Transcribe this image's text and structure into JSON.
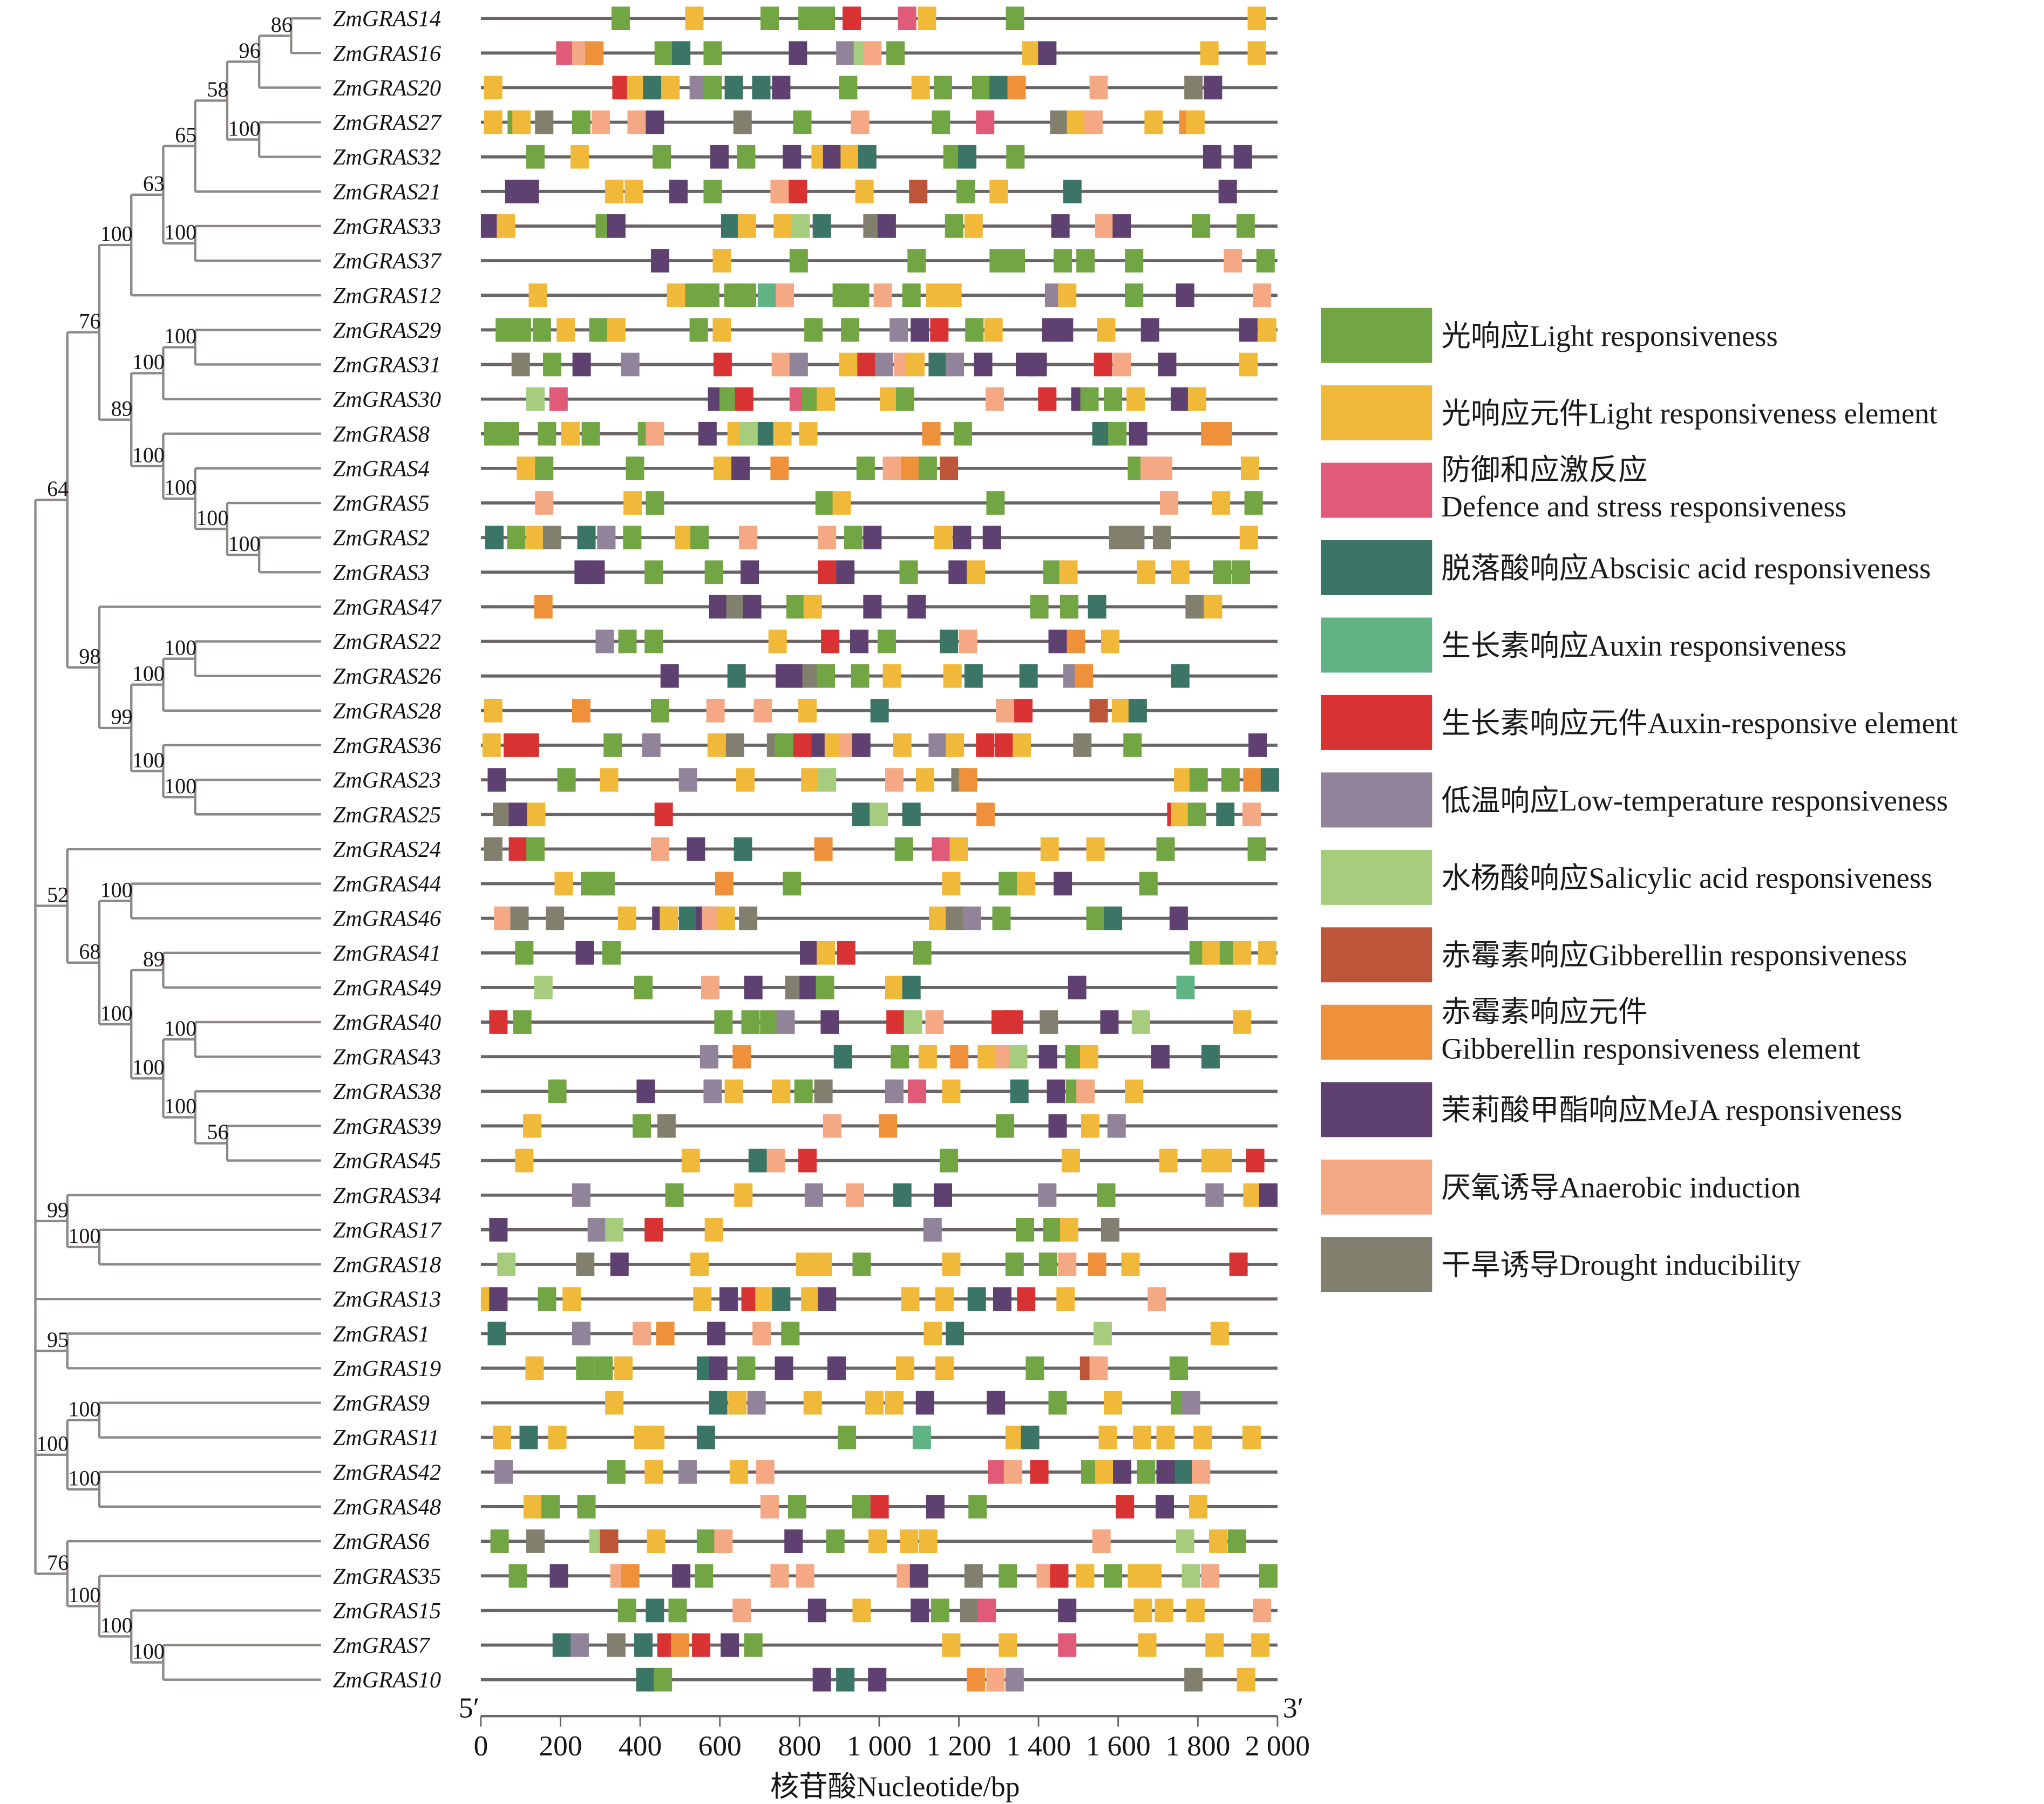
{
  "colors": {
    "L": "#72a543",
    "E": "#f0b93a",
    "D": "#e05b78",
    "A": "#3a7566",
    "X": "#5fb384",
    "R": "#d93233",
    "T": "#918399",
    "S": "#a6cd7d",
    "G": "#bd5538",
    "O": "#ef913a",
    "M": "#5e4170",
    "N": "#f4a883",
    "U": "#817f6e"
  },
  "legend": [
    {
      "code": "L",
      "zh": "光响应",
      "en": "Light responsiveness",
      "two_line": false
    },
    {
      "code": "E",
      "zh": "光响应元件",
      "en": "Light responsiveness element",
      "two_line": false
    },
    {
      "code": "D",
      "zh": "防御和应激反应",
      "en": "Defence and stress responsiveness",
      "two_line": true
    },
    {
      "code": "A",
      "zh": "脱落酸响应",
      "en": "Abscisic acid responsiveness",
      "two_line": false
    },
    {
      "code": "X",
      "zh": "生长素响应",
      "en": "Auxin responsiveness",
      "two_line": false
    },
    {
      "code": "R",
      "zh": "生长素响应元件",
      "en": "Auxin-responsive element",
      "two_line": false
    },
    {
      "code": "T",
      "zh": "低温响应",
      "en": "Low-temperature responsiveness",
      "two_line": false
    },
    {
      "code": "S",
      "zh": "水杨酸响应",
      "en": "Salicylic acid responsiveness",
      "two_line": false
    },
    {
      "code": "G",
      "zh": "赤霉素响应",
      "en": "Gibberellin responsiveness",
      "two_line": false
    },
    {
      "code": "O",
      "zh": "赤霉素响应元件",
      "en": "Gibberellin responsiveness element",
      "two_line": true
    },
    {
      "code": "M",
      "zh": "茉莉酸甲酯响应",
      "en": "MeJA responsiveness",
      "two_line": false
    },
    {
      "code": "N",
      "zh": "厌氧诱导",
      "en": "Anaerobic induction",
      "two_line": false
    },
    {
      "code": "U",
      "zh": "干旱诱导",
      "en": "Drought inducibility",
      "two_line": false
    }
  ],
  "axis": {
    "min": 0,
    "max": 2000,
    "ticks": [
      0,
      200,
      400,
      600,
      800,
      1000,
      1200,
      1400,
      1600,
      1800,
      2000
    ],
    "tick_labels": [
      "0",
      "200",
      "400",
      "600",
      "800",
      "1 000",
      "1 200",
      "1 400",
      "1 600",
      "1 800",
      "2 000"
    ],
    "five_prime": "5′",
    "three_prime": "3′",
    "title": "核苷酸Nucleotide/bp"
  },
  "genes": [
    {
      "name": "ZmGRAS14",
      "elements": "328L 513E 702L 797L 843L 908R 1047D 1097E 1318L 1925E"
    },
    {
      "name": "ZmGRAS16",
      "elements": "189D 229N 262O 436L 480A 559L 773M 892T 936S 960N 1018L 1359E 1399M 1806E 1925E"
    },
    {
      "name": "ZmGRAS20",
      "elements": "8E 330R 367E 407A 453E 524T 559L 612A 681A 731M 899L 1081E 1137L 1233L 1277A 1322O 1528N 1766U 1815M"
    },
    {
      "name": "ZmGRAS27",
      "elements": "8E 67L 79E 136U 229L 278N 368N 414M 634U 784L 929N 1132L 1243D 1429U 1471E 1515N 1666E 1753O 1771E"
    },
    {
      "name": "ZmGRAS32",
      "elements": "114L 225E 431L 576M 643L 758M 830E 859M 903E 947A 1161L 1198A 1319L 1813M 1890M"
    },
    {
      "name": "ZmGRAS21",
      "elements": "61M 100M 312E 361E 473M 559L 727N 773R 940E 1075G 1194L 1277E 1462A 1852M"
    },
    {
      "name": "ZmGRAS33",
      "elements": "0M 40E 288L 317M 603A 645E 735E 780S 833A 960U 996M 1165L 1214E 1432M 1542N 1586M 1785L 1897L"
    },
    {
      "name": "ZmGRAS37",
      "elements": "427M 582E 775L 1071L 1277L 1320L 1438L 1495L 1617L 1865N 1947L"
    },
    {
      "name": "ZmGRAS12",
      "elements": "120E 467E 513L 553L 611L 645L 695X 740N 883L 929L 986N 1058L 1118E 1161E 1416T 1449E 1617L 1745M 1938N"
    },
    {
      "name": "ZmGRAS29",
      "elements": "37L 80L 130L 190E 272L 317E 524L 582E 812L 904L 1026T 1079M 1128R 1216L 1264E 1409M 1441M 1547E 1657M 1904M 1951E"
    },
    {
      "name": "ZmGRAS31",
      "elements": "77U 156L 230M 352T 584R 730N 775T 899E 945R 989T 1037N 1068E 1124A 1167T 1238M 1343M 1375M 1539R 1586N 1700M 1904E"
    },
    {
      "name": "ZmGRAS30",
      "elements": "114S 172D 570M 599L 638R 775D 804L 843E 1002E 1042L 1267N 1399R 1482M 1505L 1564L 1621E 1732M 1775E"
    },
    {
      "name": "ZmGRAS8",
      "elements": "8L 50L 143L 202E 253L 394L 414N 546M 619E 649S 695A 734E 799E 1108O 1187L 1535A 1575L 1627M 1808O 1840O"
    },
    {
      "name": "ZmGRAS4",
      "elements": "90E 136L 364L 584E 629M 727O 943L 1009N 1055O 1099L 1152G 1624L 1656N 1690N 1908E"
    },
    {
      "name": "ZmGRAS5",
      "elements": "136N 358E 414L 840L 883E 1269L 1705N 1835E 1917L"
    },
    {
      "name": "ZmGRAS2",
      "elements": "11A 66L 114E 156U 242A 292T 357L 487E 526L 648N 846N 912L 960M 1138E 1185M 1260M 1577U 1620U 1687U 1905E"
    },
    {
      "name": "ZmGRAS3",
      "elements": "235M 265M 411L 562L 652M 846R 892M 1051L 1174M 1220E 1412L 1452E 1647E 1733E 1838L 1885L"
    },
    {
      "name": "ZmGRAS47",
      "elements": "134O 573M 616U 658M 767L 810E 960M 1071M 1379L 1454L 1524A 1769U 1815E"
    },
    {
      "name": "ZmGRAS22",
      "elements": "288T 345L 411L 722E 854R 927M 996L 1152A 1200N 1425M 1471O 1557E"
    },
    {
      "name": "ZmGRAS26",
      "elements": "451M 619A 740M 770M 807U 843L 929L 1009E 1161E 1214A 1352A 1462T 1491O 1733A"
    },
    {
      "name": "ZmGRAS28",
      "elements": "8E 229O 427L 566N 685N 797E 978A 1293N 1339R 1528G 1584E 1626A"
    },
    {
      "name": "ZmGRAS36",
      "elements": "4E 57R 100R 308L 405T 569E 615U 718U 738L 784R 830M 863E 899N 932M 1035E 1124T 1167E 1243R 1290R 1335E 1487U 1613L 1927M"
    },
    {
      "name": "ZmGRAS23",
      "elements": "17M 192L 299E 497T 641E 804E 846S 1015N 1092E 1181U 1200O 1740E 1779L 1859L 1914O 1958A"
    },
    {
      "name": "ZmGRAS25",
      "elements": "30U 70M 116E 436R 932A 976S 1058A 1244O 1723R 1732E 1775L 1846A 1912N"
    },
    {
      "name": "ZmGRAS24",
      "elements": "8U 70R 114L 427N 517M 635A 837O 1039L 1132D 1177E 1405E 1520E 1696L 1925L"
    },
    {
      "name": "ZmGRAS44",
      "elements": "185E 251L 290L 588O 758L 1158E 1300L 1346E 1438M 1653L"
    },
    {
      "name": "ZmGRAS46",
      "elements": "33N 74U 163U 344E 430M 449E 497A 540M 555N 592E 648U 1125E 1167U 1210T 1284L 1520L 1564A 1729M"
    },
    {
      "name": "ZmGRAS41",
      "elements": "86L 238M 305L 801M 843E 894R 1085L 1779L 1811E 1855L 1888E 1951E"
    },
    {
      "name": "ZmGRAS49",
      "elements": "134S 385L 553N 661M 764U 800M 841L 1015E 1058A 1474M 1746X"
    },
    {
      "name": "ZmGRAS40",
      "elements": "21R 81L 586L 654L 701L 742T 853M 1018R 1062S 1116N 1282R 1315R 1403U 1555M 1634S 1888E"
    },
    {
      "name": "ZmGRAS43",
      "elements": "550T 632O 886A 1029L 1099E 1178O 1247E 1290N 1326S 1401M 1467L 1504E 1683M 1809A"
    },
    {
      "name": "ZmGRAS38",
      "elements": "169L 391M 559T 612E 731E 787L 837U 1015T 1072D 1158E 1329A 1421M 1469L 1495N 1617E"
    },
    {
      "name": "ZmGRAS39",
      "elements": "106E 381L 443U 859N 999O 1293L 1425M 1507E 1573T"
    },
    {
      "name": "ZmGRAS45",
      "elements": "86E 504E 672A 718N 797R 1152L 1458E 1703E 1809E 1840E 1921R"
    },
    {
      "name": "ZmGRAS34",
      "elements": "229T 463L 636E 813T 916N 1035A 1137M 1399T 1547L 1819T 1914E 1954M"
    },
    {
      "name": "ZmGRAS17",
      "elements": "21M 268T 312S 411R 562E 1111T 1343L 1412L 1454E 1557U"
    },
    {
      "name": "ZmGRAS18",
      "elements": "41S 239U 325M 526E 791E 836E 933L 1158E 1317L 1401L 1449N 1524O 1608E 1879R"
    },
    {
      "name": "ZmGRAS13",
      "elements": "0E 21M 143L 205E 533E 599M 654R 689E 731A 804E 846M 1055E 1141E 1222A 1286M 1346R 1445E 1674N"
    },
    {
      "name": "ZmGRAS1",
      "elements": "17A 229T 381N 440O 568M 682N 754L 1112E 1167A 1538S 1832E"
    },
    {
      "name": "ZmGRAS19",
      "elements": "112E 239L 285L 335E 542A 573M 643L 738M 870M 1042E 1141E 1368L 1504G 1528N 1729L"
    },
    {
      "name": "ZmGRAS9",
      "elements": "312E 573A 621E 669T 810E 965E 1015E 1092M 1270M 1425L 1564E 1732L 1760T"
    },
    {
      "name": "ZmGRAS11",
      "elements": "30E 97A 169E 385E 415E 542A 896L 1084X 1317E 1356A 1551E 1637E 1696E 1789E 1912E"
    },
    {
      "name": "ZmGRAS42",
      "elements": "34T 317L 411E 496T 625E 691N 1273D 1313N 1379R 1507L 1542E 1587M 1647L 1696M 1742A 1785N"
    },
    {
      "name": "ZmGRAS48",
      "elements": "107E 152L 242L 702N 771L 932L 978R 1118M 1224L 1594R 1694M 1778E"
    },
    {
      "name": "ZmGRAS6",
      "elements": "24L 114U 272S 299G 417E 542L 586N 762M 867L 973E 1052E 1100E 1535N 1745S 1828E 1875L"
    },
    {
      "name": "ZmGRAS35",
      "elements": "70L 173M 325N 352O 480M 537L 727N 791N 1044N 1077M 1214U 1300L 1395N 1429R 1494E 1564L 1624E 1663E 1760S 1808N 1954L"
    },
    {
      "name": "ZmGRAS15",
      "elements": "344L 414A 471L 632N 821M 933E 1079M 1130L 1203U 1247D 1449M 1639E 1692E 1771E 1938N"
    },
    {
      "name": "ZmGRAS7",
      "elements": "180A 225T 317U 385A 443R 477O 530R 602M 661L 1158E 1300E 1449D 1650E 1819E 1934E"
    },
    {
      "name": "ZmGRAS10",
      "elements": "390A 434L 833M 892A 972M 1220O 1269N 1317T 1766U 1898E"
    }
  ],
  "tree": {
    "c": [
      {
        "b": 64,
        "c": [
          {
            "b": 76,
            "c": [
              {
                "b": 100,
                "c": [
                  {
                    "b": 63,
                    "c": [
                      {
                        "b": 65,
                        "c": [
                          {
                            "b": 58,
                            "c": [
                              {
                                "b": 96,
                                "c": [
                                  {
                                    "b": 86,
                                    "c": [
                                      0,
                                      1
                                    ]
                                  },
                                  2
                                ]
                              },
                              {
                                "b": 100,
                                "c": [
                                  3,
                                  4
                                ]
                              }
                            ]
                          },
                          5
                        ]
                      },
                      {
                        "b": 100,
                        "c": [
                          6,
                          7
                        ]
                      }
                    ]
                  },
                  8
                ]
              },
              {
                "b": 89,
                "c": [
                  {
                    "b": 100,
                    "c": [
                      {
                        "b": 100,
                        "c": [
                          9,
                          10
                        ]
                      },
                      11
                    ]
                  },
                  {
                    "b": 100,
                    "c": [
                      12,
                      {
                        "b": 100,
                        "c": [
                          13,
                          {
                            "b": 100,
                            "c": [
                              14,
                              {
                                "b": 100,
                                "c": [
                                  15,
                                  16
                                ]
                              }
                            ]
                          }
                        ]
                      }
                    ]
                  }
                ]
              }
            ]
          },
          {
            "b": 98,
            "c": [
              17,
              {
                "b": 99,
                "c": [
                  {
                    "b": 100,
                    "c": [
                      {
                        "b": 100,
                        "c": [
                          18,
                          19
                        ]
                      },
                      20
                    ]
                  },
                  {
                    "b": 100,
                    "c": [
                      21,
                      {
                        "b": 100,
                        "c": [
                          22,
                          23
                        ]
                      }
                    ]
                  }
                ]
              }
            ]
          }
        ]
      },
      {
        "b": 52,
        "c": [
          24,
          {
            "b": 68,
            "c": [
              {
                "b": 100,
                "c": [
                  25,
                  26
                ]
              },
              {
                "b": 100,
                "c": [
                  {
                    "b": 89,
                    "c": [
                      27,
                      28
                    ]
                  },
                  {
                    "b": 100,
                    "c": [
                      {
                        "b": 100,
                        "c": [
                          29,
                          30
                        ]
                      },
                      {
                        "b": 100,
                        "c": [
                          31,
                          {
                            "b": 56,
                            "c": [
                              32,
                              33
                            ]
                          }
                        ]
                      }
                    ]
                  }
                ]
              }
            ]
          }
        ]
      },
      {
        "b": 99,
        "c": [
          34,
          {
            "b": 100,
            "c": [
              35,
              36
            ]
          }
        ]
      },
      37,
      {
        "b": 95,
        "c": [
          38,
          39
        ]
      },
      {
        "b": 100,
        "c": [
          {
            "b": 100,
            "c": [
              40,
              41
            ]
          },
          {
            "b": 100,
            "c": [
              42,
              43
            ]
          }
        ]
      },
      {
        "b": 76,
        "c": [
          44,
          {
            "b": 100,
            "c": [
              45,
              {
                "b": 100,
                "c": [
                  46,
                  {
                    "b": 100,
                    "c": [
                      47,
                      48
                    ]
                  }
                ]
              }
            ]
          }
        ]
      }
    ]
  }
}
